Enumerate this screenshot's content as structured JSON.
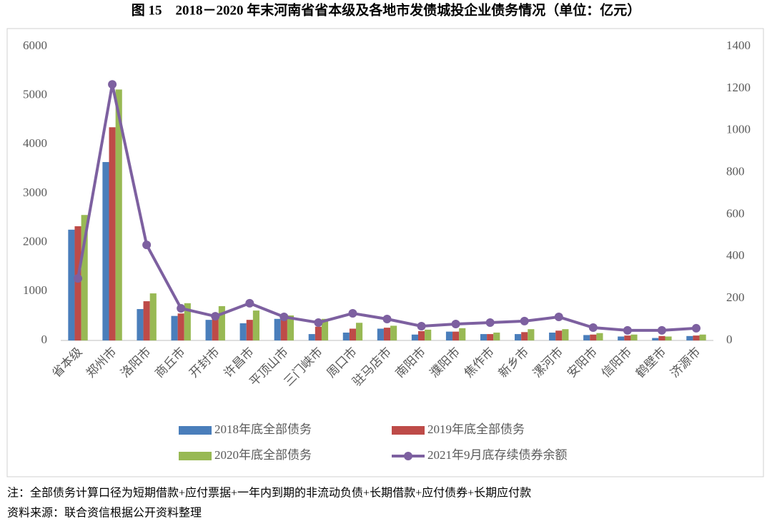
{
  "chart_data": {
    "type": "bar",
    "title": "图 15　2018－2020 年末河南省省本级及各地市发债城投企业债务情况（单位：亿元）",
    "categories": [
      "省本级",
      "郑州市",
      "洛阳市",
      "商丘市",
      "开封市",
      "许昌市",
      "平顶山市",
      "三门峡市",
      "周口市",
      "驻马店市",
      "南阳市",
      "濮阳市",
      "焦作市",
      "新乡市",
      "漯河市",
      "安阳市",
      "信阳市",
      "鹤壁市",
      "济源市"
    ],
    "series": [
      {
        "name": "2018年底全部债务",
        "color": "#4a7ebb",
        "values": [
          2260,
          3640,
          640,
          500,
          420,
          350,
          440,
          130,
          160,
          240,
          120,
          180,
          130,
          130,
          160,
          110,
          80,
          50,
          90
        ]
      },
      {
        "name": "2019年底全部债务",
        "color": "#be4b48",
        "values": [
          2330,
          4350,
          800,
          550,
          450,
          420,
          490,
          280,
          240,
          260,
          190,
          180,
          130,
          170,
          200,
          120,
          100,
          90,
          100
        ]
      },
      {
        "name": "2020年底全部债务",
        "color": "#98b954",
        "values": [
          2560,
          5120,
          960,
          760,
          700,
          610,
          510,
          440,
          360,
          300,
          220,
          250,
          160,
          230,
          230,
          150,
          120,
          80,
          120
        ]
      },
      {
        "name": "2021年9月底存续债券余额",
        "color": "#7d60a0",
        "type": "line",
        "axis": "y2",
        "values": [
          295,
          1219,
          455,
          153,
          115,
          177,
          112,
          85,
          129,
          102,
          68,
          78,
          85,
          92,
          112,
          61,
          48,
          48,
          58
        ]
      }
    ],
    "ylim": [
      0,
      6000
    ],
    "yticks": [
      0,
      1000,
      2000,
      3000,
      4000,
      5000,
      6000
    ],
    "y2lim": [
      0,
      1400
    ],
    "y2ticks": [
      0,
      200,
      400,
      600,
      800,
      1000,
      1200,
      1400
    ],
    "grid": false
  },
  "notes": [
    "注：全部债务计算口径为短期借款+应付票据+一年内到期的非流动负债+长期借款+应付债券+长期应付款",
    "资料来源：联合资信根据公开资料整理"
  ]
}
